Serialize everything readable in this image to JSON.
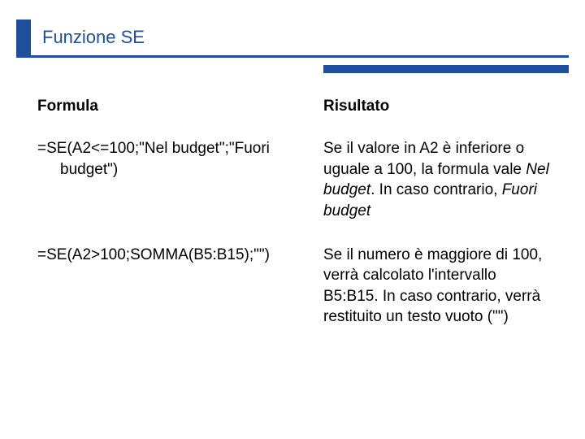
{
  "title": "Funzione SE",
  "colors": {
    "accent": "#1f4e9c",
    "text": "#000000",
    "background": "#ffffff"
  },
  "typography": {
    "title_fontsize": 22,
    "body_fontsize": 19,
    "font_family": "Verdana"
  },
  "table": {
    "headers": {
      "formula": "Formula",
      "result": "Risultato"
    },
    "rows": [
      {
        "formula_line1": "=SE(A2<=100;\"Nel budget\";\"Fuori",
        "formula_line2": "budget\")",
        "result_pre1": "Se il valore in A2 è inferiore o uguale a 100, la formula vale ",
        "result_italic1": "Nel budget",
        "result_mid": ". In caso contrario, ",
        "result_italic2": "Fuori budget"
      },
      {
        "formula_line1": "=SE(A2>100;SOMMA(B5:B15);\"\")",
        "formula_line2": "",
        "result_pre1": "Se il numero è maggiore di 100, verrà calcolato l'intervallo B5:B15. In caso contrario, verrà restituito un testo vuoto (\"\")",
        "result_italic1": "",
        "result_mid": "",
        "result_italic2": ""
      }
    ]
  }
}
